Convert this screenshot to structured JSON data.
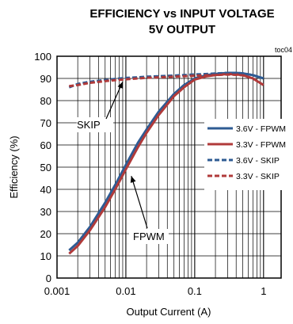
{
  "chart_data": {
    "type": "line",
    "title": "EFFICIENCY vs INPUT VOLTAGE",
    "subtitle": "5V OUTPUT",
    "figure_id": "toc04",
    "xlabel": "Output Current (A)",
    "ylabel": "Efficiency (%)",
    "xscale": "log",
    "xlim": [
      0.001,
      1.8
    ],
    "ylim": [
      0,
      100
    ],
    "xticks": [
      0.001,
      0.01,
      0.1,
      1
    ],
    "xtick_labels": [
      "0.001",
      "0.01",
      "0.1",
      "1"
    ],
    "yticks": [
      0,
      10,
      20,
      30,
      40,
      50,
      60,
      70,
      80,
      90,
      100
    ],
    "ytick_labels": [
      "0",
      "10",
      "20",
      "30",
      "40",
      "50",
      "60",
      "70",
      "80",
      "90",
      "100"
    ],
    "grid": true,
    "legend_position": "right-middle",
    "series": [
      {
        "name": "3.6V - FPWM",
        "color": "#2e5b93",
        "style": "solid",
        "x": [
          0.0015,
          0.002,
          0.003,
          0.005,
          0.007,
          0.01,
          0.015,
          0.02,
          0.03,
          0.05,
          0.07,
          0.1,
          0.15,
          0.2,
          0.3,
          0.4,
          0.5,
          0.7,
          1.0
        ],
        "y": [
          12.5,
          16,
          23,
          34,
          42,
          51,
          61,
          67,
          75,
          83,
          87,
          90,
          91.5,
          92,
          92.5,
          92.5,
          92.3,
          91.5,
          90
        ]
      },
      {
        "name": "3.3V - FPWM",
        "color": "#b03a3a",
        "style": "solid",
        "x": [
          0.0015,
          0.002,
          0.003,
          0.005,
          0.007,
          0.01,
          0.015,
          0.02,
          0.03,
          0.05,
          0.07,
          0.1,
          0.15,
          0.2,
          0.3,
          0.4,
          0.5,
          0.7,
          1.0
        ],
        "y": [
          11,
          14.5,
          21.5,
          32,
          40,
          49,
          59,
          65.5,
          73.5,
          82,
          86,
          89.5,
          91,
          91.5,
          92,
          91.8,
          91.5,
          90,
          87
        ]
      },
      {
        "name": "3.6V - SKIP",
        "color": "#2e5b93",
        "style": "dashed",
        "x": [
          0.0015,
          0.002,
          0.003,
          0.005,
          0.007,
          0.01,
          0.015,
          0.02,
          0.03,
          0.05,
          0.07,
          0.1,
          0.15,
          0.2,
          0.3,
          0.4,
          0.5,
          0.7,
          1.0
        ],
        "y": [
          86,
          87.5,
          88.5,
          89.3,
          89.8,
          90.2,
          90.5,
          90.8,
          91,
          91.3,
          91.5,
          91.8,
          92,
          92.2,
          92.5,
          92.5,
          92.3,
          91.5,
          90
        ]
      },
      {
        "name": "3.3V - SKIP",
        "color": "#b03a3a",
        "style": "dashed",
        "x": [
          0.0015,
          0.002,
          0.003,
          0.005,
          0.007,
          0.01,
          0.015,
          0.02,
          0.03,
          0.05,
          0.07,
          0.1,
          0.15,
          0.2,
          0.3,
          0.4,
          0.5,
          0.7,
          1.0
        ],
        "y": [
          86.5,
          87,
          88,
          88.8,
          89.2,
          89.6,
          90,
          90.3,
          90.5,
          90.8,
          91,
          91.2,
          91.4,
          91.5,
          91.8,
          91.6,
          91.4,
          90,
          87
        ]
      }
    ],
    "annotations": [
      {
        "text": "SKIP",
        "points_to": {
          "x": 0.009,
          "y": 88.5
        }
      },
      {
        "text": "FPWM",
        "points_to": {
          "x": 0.012,
          "y": 46
        }
      }
    ]
  }
}
